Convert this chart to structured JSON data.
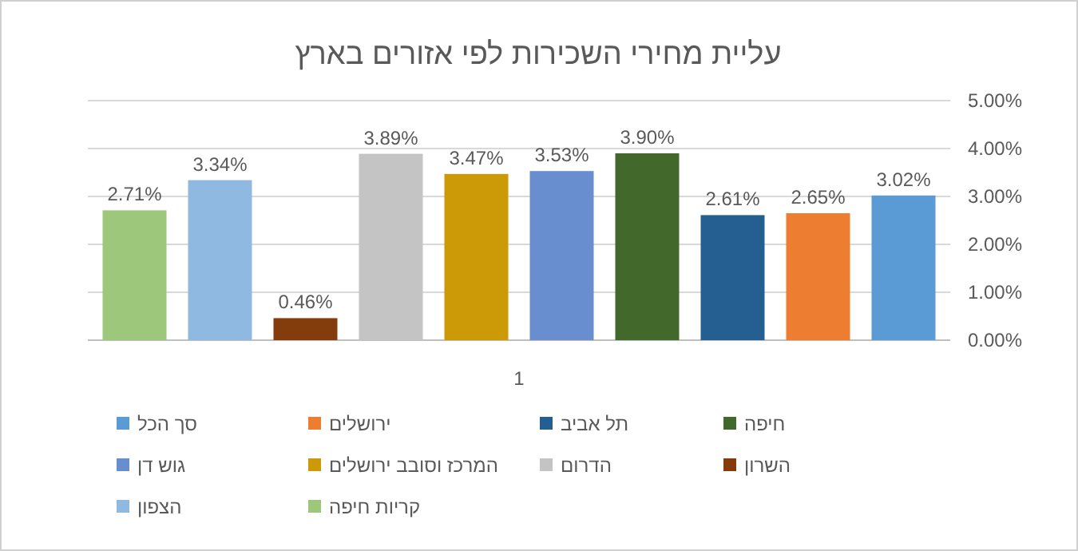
{
  "chart_data": {
    "type": "bar",
    "title": "עליית מחירי השכירות לפי אזורים בארץ",
    "categories": [
      "1"
    ],
    "series": [
      {
        "name": "סך הכל",
        "color": "#5b9bd5",
        "values": [
          3.02
        ],
        "value_labels": [
          "3.02%"
        ]
      },
      {
        "name": "ירושלים",
        "color": "#ed7d31",
        "values": [
          2.65
        ],
        "value_labels": [
          "2.65%"
        ]
      },
      {
        "name": "תל אביב",
        "color": "#255e91",
        "values": [
          2.61
        ],
        "value_labels": [
          "2.61%"
        ]
      },
      {
        "name": "חיפה",
        "color": "#43682b",
        "values": [
          3.9
        ],
        "value_labels": [
          "3.90%"
        ]
      },
      {
        "name": "גוש דן",
        "color": "#698ed0",
        "values": [
          3.53
        ],
        "value_labels": [
          "3.53%"
        ]
      },
      {
        "name": "המרכז וסובב ירושלים",
        "color": "#cc9a06",
        "values": [
          3.47
        ],
        "value_labels": [
          "3.47%"
        ]
      },
      {
        "name": "הדרום",
        "color": "#c4c4c4",
        "values": [
          3.89
        ],
        "value_labels": [
          "3.89%"
        ]
      },
      {
        "name": "השרון",
        "color": "#843c0c",
        "values": [
          0.46
        ],
        "value_labels": [
          "0.46%"
        ]
      },
      {
        "name": "הצפון",
        "color": "#8fb9e1",
        "values": [
          3.34
        ],
        "value_labels": [
          "3.34%"
        ]
      },
      {
        "name": "קריות חיפה",
        "color": "#9dc77a",
        "values": [
          2.71
        ],
        "value_labels": [
          "2.71%"
        ]
      }
    ],
    "ylim": [
      0,
      5
    ],
    "yticks": [
      {
        "value": 0,
        "label": "0.00%"
      },
      {
        "value": 1,
        "label": "1.00%"
      },
      {
        "value": 2,
        "label": "2.00%"
      },
      {
        "value": 3,
        "label": "3.00%"
      },
      {
        "value": 4,
        "label": "4.00%"
      },
      {
        "value": 5,
        "label": "5.00%"
      }
    ],
    "grid": "y",
    "legend": "bottom"
  }
}
